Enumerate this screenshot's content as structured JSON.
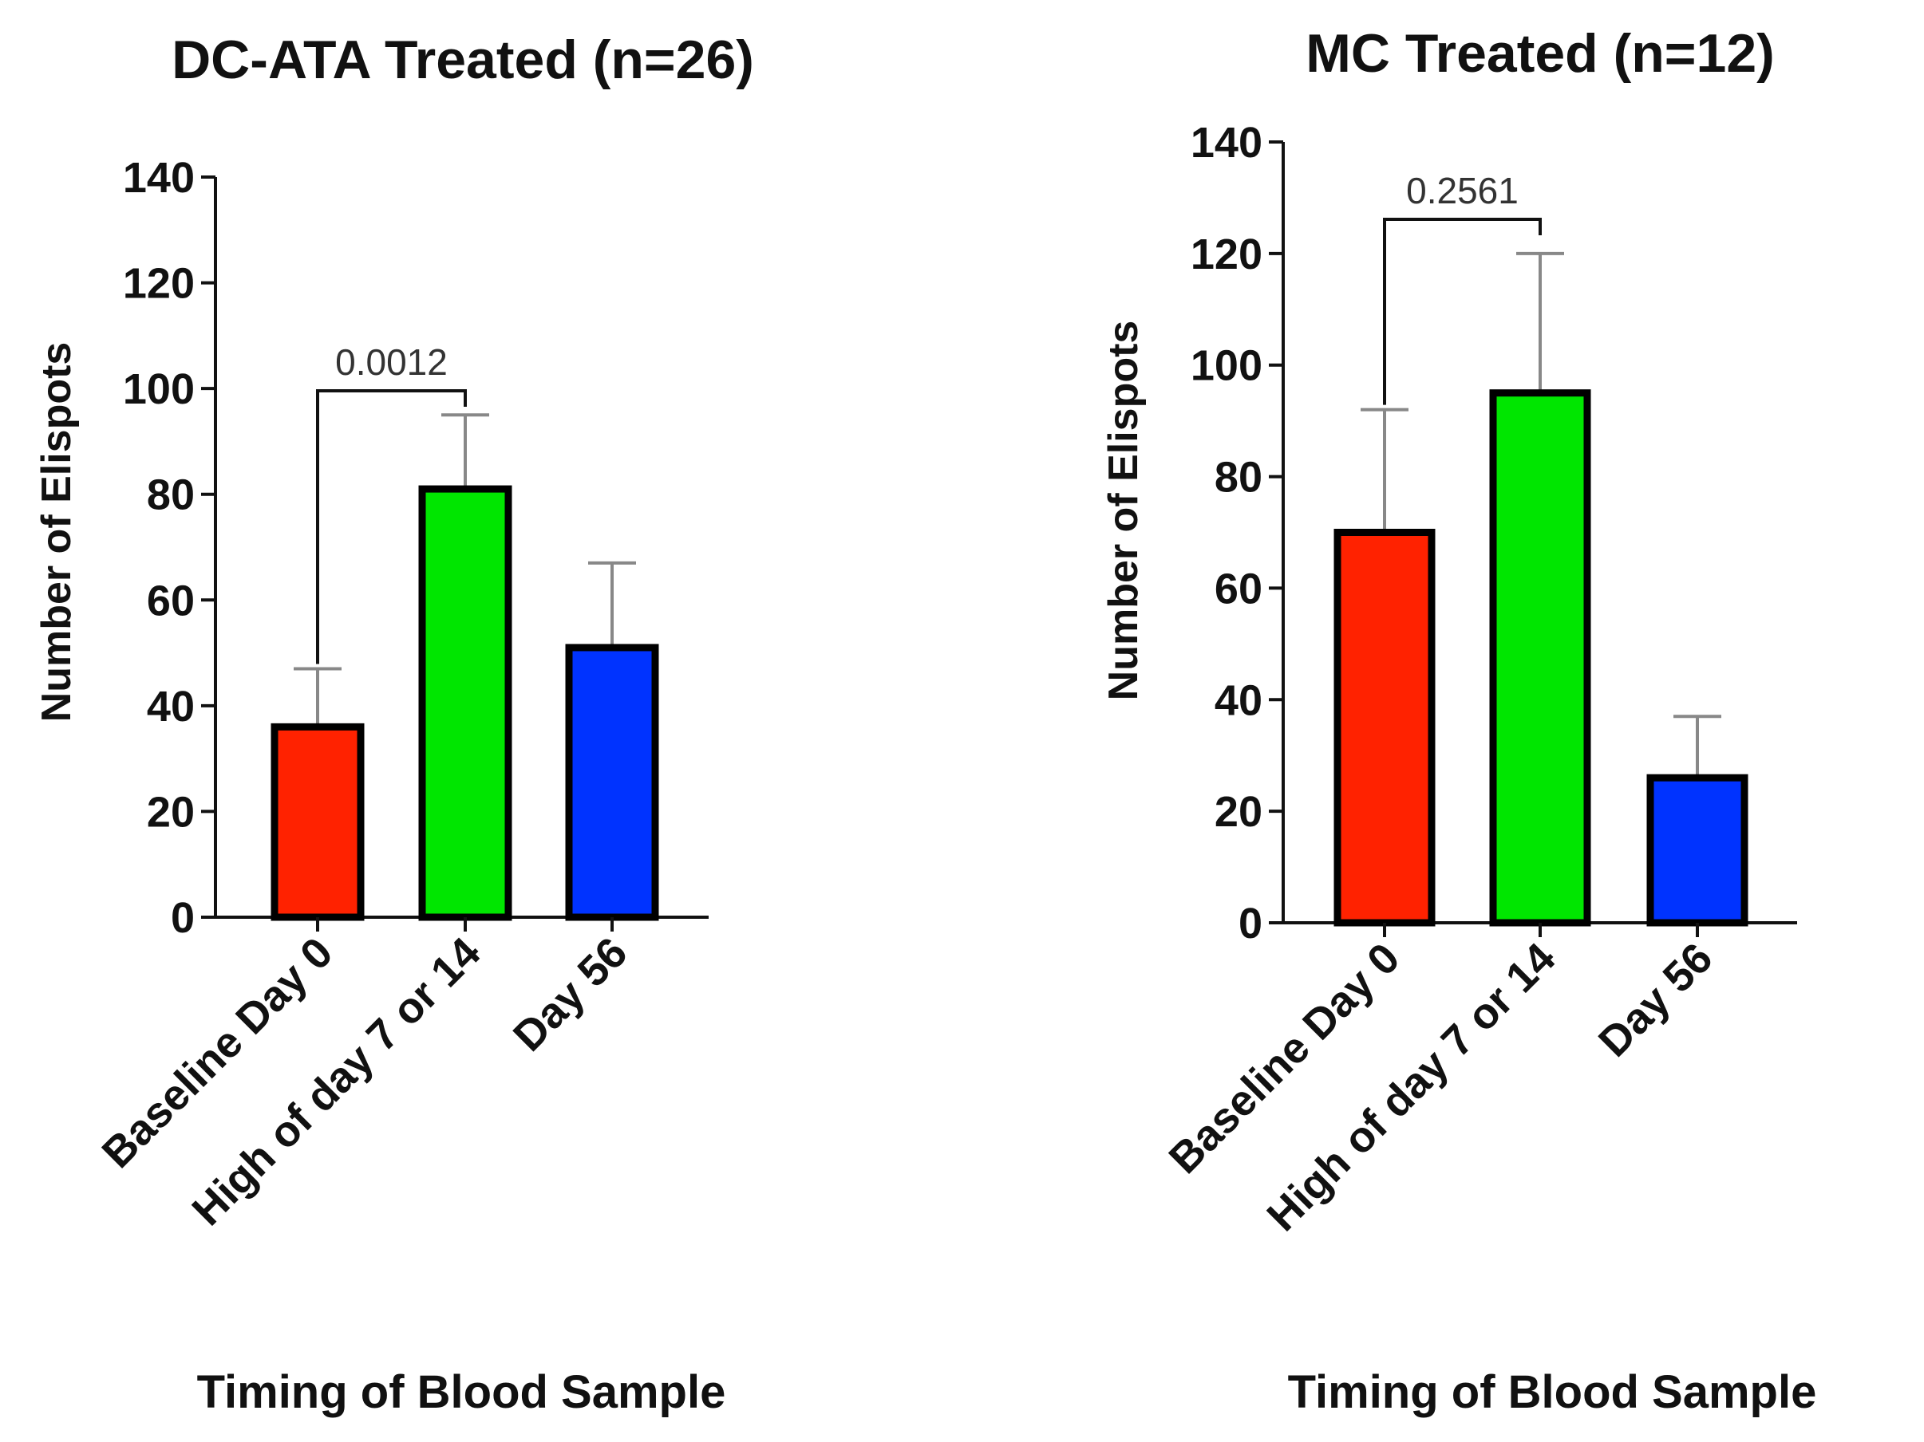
{
  "chart_data": [
    {
      "type": "bar",
      "title": "DC-ATA Treated (n=26)",
      "xlabel": "Timing of Blood Sample",
      "ylabel": "Number of Elispots",
      "ylim": [
        0,
        140
      ],
      "yticks": [
        0,
        20,
        40,
        60,
        80,
        100,
        120,
        140
      ],
      "categories": [
        "Baseline Day 0",
        "High of day 7 or 14",
        "Day 56"
      ],
      "values": [
        36,
        81,
        51
      ],
      "error_upper": [
        47,
        95,
        67
      ],
      "colors": [
        "#ff2200",
        "#00e600",
        "#0033ff"
      ],
      "significance": {
        "from": 0,
        "to": 1,
        "label": "0.0012"
      }
    },
    {
      "type": "bar",
      "title": "MC Treated (n=12)",
      "xlabel": "Timing of Blood Sample",
      "ylabel": "Number of Elispots",
      "ylim": [
        0,
        140
      ],
      "yticks": [
        0,
        20,
        40,
        60,
        80,
        100,
        120,
        140
      ],
      "categories": [
        "Baseline Day 0",
        "High of day 7 or 14",
        "Day 56"
      ],
      "values": [
        70,
        95,
        26
      ],
      "error_upper": [
        92,
        120,
        37
      ],
      "colors": [
        "#ff2200",
        "#00e600",
        "#0033ff"
      ],
      "significance": {
        "from": 0,
        "to": 1,
        "label": "0.2561"
      }
    }
  ]
}
